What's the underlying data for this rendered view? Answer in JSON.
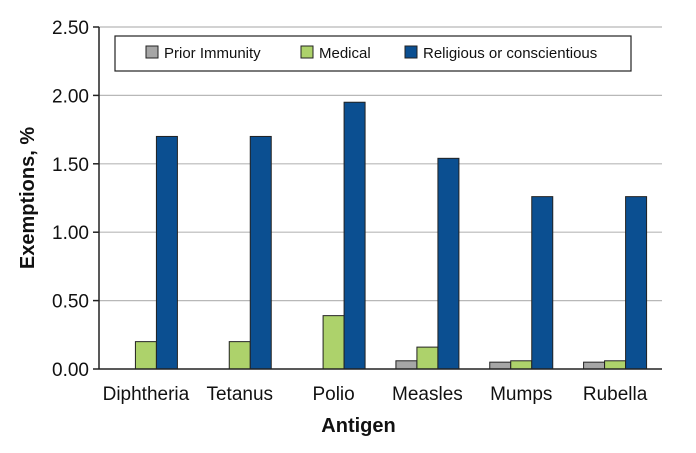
{
  "chart_data": {
    "type": "bar",
    "title": "",
    "xlabel": "Antigen",
    "ylabel": "Exemptions, %",
    "ylim": [
      0,
      2.5
    ],
    "yticks": [
      "0.00",
      "0.50",
      "1.00",
      "1.50",
      "2.00",
      "2.50"
    ],
    "grid": true,
    "legend_position": "top",
    "categories": [
      "Diphtheria",
      "Tetanus",
      "Polio",
      "Measles",
      "Mumps",
      "Rubella"
    ],
    "series": [
      {
        "name": "Prior Immunity",
        "color": "#a6a6a6",
        "values": [
          0.0,
          0.0,
          0.0,
          0.06,
          0.05,
          0.05
        ]
      },
      {
        "name": "Medical",
        "color": "#add26b",
        "values": [
          0.2,
          0.2,
          0.39,
          0.16,
          0.06,
          0.06
        ]
      },
      {
        "name": "Religious or conscientious",
        "color": "#0b4f91",
        "values": [
          1.7,
          1.7,
          1.95,
          1.54,
          1.26,
          1.26
        ]
      }
    ]
  }
}
